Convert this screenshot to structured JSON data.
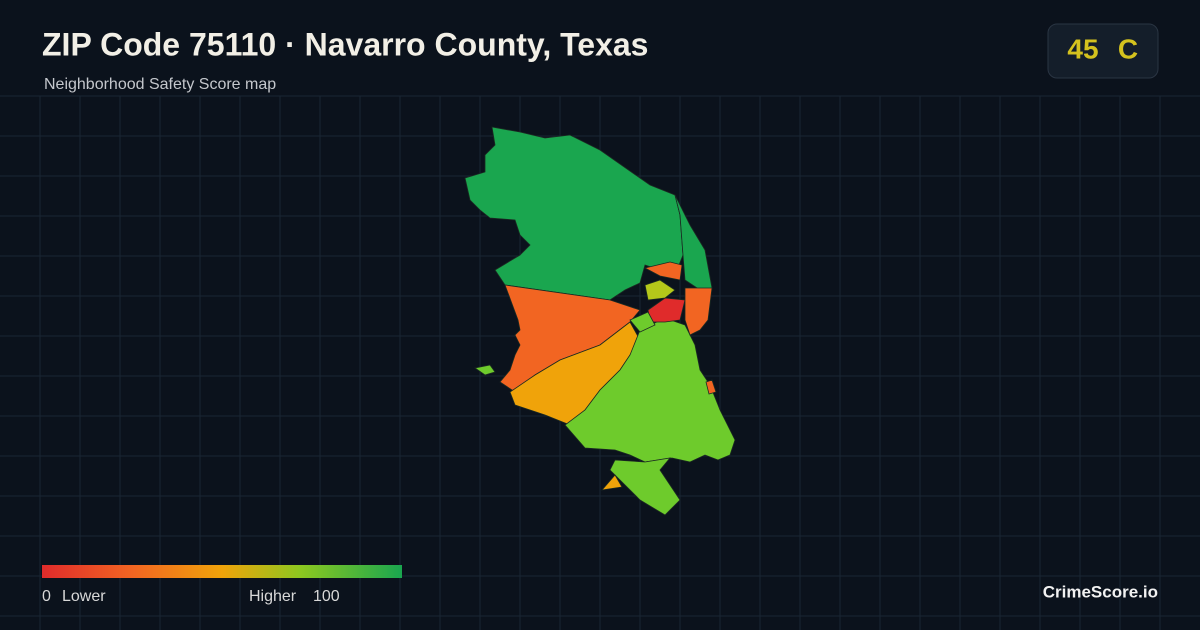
{
  "header": {
    "title": "ZIP Code 75110 · Navarro County, Texas",
    "subtitle": "Neighborhood Safety Score map"
  },
  "score_badge": {
    "score": 45,
    "grade": "C"
  },
  "legend": {
    "min": 0,
    "min_label": "Lower",
    "max_label": "Higher",
    "max": 100
  },
  "brand": "CrimeScore.io"
}
